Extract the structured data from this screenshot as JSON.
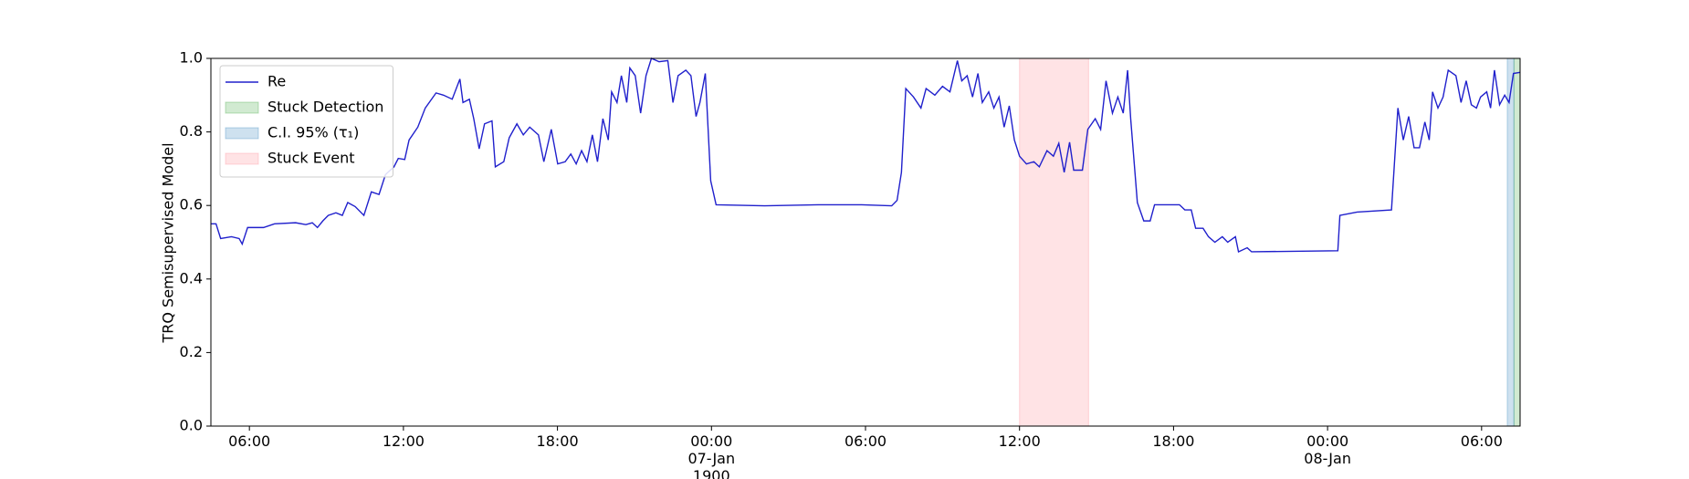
{
  "chart_data": {
    "type": "line",
    "ylabel": "TRQ Semisupervised Model",
    "xlim": [
      4.5,
      55.5
    ],
    "xticks": [
      {
        "value": 6,
        "label": "06:00"
      },
      {
        "value": 12,
        "label": "12:00"
      },
      {
        "value": 18,
        "label": "18:00"
      },
      {
        "value": 24,
        "label": "00:00\n07-Jan\n1900"
      },
      {
        "value": 30,
        "label": "06:00"
      },
      {
        "value": 36,
        "label": "12:00"
      },
      {
        "value": 42,
        "label": "18:00"
      },
      {
        "value": 48,
        "label": "00:00\n08-Jan"
      },
      {
        "value": 54,
        "label": "06:00"
      }
    ],
    "ylim": [
      0,
      1
    ],
    "yticks": [
      {
        "value": 0,
        "label": "0.0"
      },
      {
        "value": 0.2,
        "label": "0.2"
      },
      {
        "value": 0.4,
        "label": "0.4"
      },
      {
        "value": 0.6,
        "label": "0.6"
      },
      {
        "value": 0.8,
        "label": "0.8"
      },
      {
        "value": 1,
        "label": "1.0"
      }
    ],
    "legend": "upper left",
    "series": [
      {
        "name": "Re",
        "color": "#2020cc",
        "x": [
          4.5,
          4.7,
          4.88,
          5.3,
          5.6,
          5.72,
          5.93,
          6.55,
          6.98,
          7.8,
          8.2,
          8.45,
          8.65,
          8.86,
          9.07,
          9.37,
          9.62,
          9.83,
          10.12,
          10.46,
          10.75,
          11.05,
          11.3,
          11.63,
          11.8,
          12.05,
          12.22,
          12.56,
          12.85,
          13.27,
          13.56,
          13.9,
          14.2,
          14.32,
          14.57,
          14.74,
          14.95,
          15.16,
          15.45,
          15.58,
          15.91,
          16.12,
          16.42,
          16.67,
          16.92,
          17.26,
          17.47,
          17.76,
          18.01,
          18.3,
          18.52,
          18.73,
          18.94,
          19.15,
          19.36,
          19.56,
          19.77,
          19.98,
          20.11,
          20.32,
          20.49,
          20.7,
          20.82,
          21.03,
          21.24,
          21.45,
          21.66,
          21.96,
          22.3,
          22.5,
          22.7,
          23.0,
          23.2,
          23.4,
          23.55,
          23.76,
          23.97,
          24.18,
          26.07,
          28.17,
          29.85,
          31.02,
          31.23,
          31.4,
          31.57,
          31.87,
          32.16,
          32.36,
          32.7,
          33.0,
          33.29,
          33.58,
          33.75,
          33.96,
          34.17,
          34.38,
          34.55,
          34.8,
          35.0,
          35.2,
          35.4,
          35.6,
          35.8,
          36.0,
          36.27,
          36.56,
          36.77,
          37.07,
          37.32,
          37.53,
          37.74,
          37.95,
          38.11,
          38.45,
          38.66,
          38.95,
          39.16,
          39.37,
          39.62,
          39.83,
          40.04,
          40.21,
          40.33,
          40.59,
          40.84,
          41.09,
          41.26,
          42.23,
          42.44,
          42.69,
          42.86,
          43.15,
          43.36,
          43.61,
          43.9,
          44.11,
          44.41,
          44.53,
          44.87,
          45.04,
          48.4,
          48.48,
          49.15,
          50.49,
          50.74,
          50.95,
          51.16,
          51.37,
          51.58,
          51.79,
          51.96,
          52.09,
          52.3,
          52.5,
          52.7,
          53.0,
          53.2,
          53.4,
          53.6,
          53.8,
          53.96,
          54.2,
          54.35,
          54.5,
          54.7,
          54.9,
          55.07,
          55.24,
          55.5
        ],
        "values": [
          0.55,
          0.55,
          0.51,
          0.515,
          0.51,
          0.495,
          0.54,
          0.54,
          0.55,
          0.553,
          0.548,
          0.553,
          0.54,
          0.558,
          0.573,
          0.58,
          0.573,
          0.608,
          0.597,
          0.573,
          0.637,
          0.63,
          0.684,
          0.705,
          0.728,
          0.725,
          0.778,
          0.813,
          0.865,
          0.906,
          0.9,
          0.889,
          0.944,
          0.88,
          0.889,
          0.836,
          0.754,
          0.822,
          0.83,
          0.705,
          0.719,
          0.784,
          0.822,
          0.792,
          0.813,
          0.792,
          0.719,
          0.807,
          0.713,
          0.719,
          0.74,
          0.713,
          0.749,
          0.719,
          0.792,
          0.719,
          0.836,
          0.778,
          0.909,
          0.88,
          0.953,
          0.88,
          0.974,
          0.953,
          0.851,
          0.953,
          1.0,
          0.991,
          0.994,
          0.88,
          0.953,
          0.968,
          0.953,
          0.842,
          0.88,
          0.959,
          0.667,
          0.602,
          0.599,
          0.602,
          0.602,
          0.599,
          0.614,
          0.69,
          0.918,
          0.895,
          0.865,
          0.918,
          0.9,
          0.924,
          0.909,
          0.994,
          0.939,
          0.953,
          0.895,
          0.959,
          0.88,
          0.909,
          0.865,
          0.895,
          0.813,
          0.871,
          0.778,
          0.734,
          0.713,
          0.719,
          0.705,
          0.749,
          0.734,
          0.769,
          0.69,
          0.772,
          0.696,
          0.696,
          0.807,
          0.836,
          0.807,
          0.939,
          0.851,
          0.895,
          0.851,
          0.968,
          0.836,
          0.608,
          0.558,
          0.558,
          0.602,
          0.602,
          0.588,
          0.588,
          0.538,
          0.538,
          0.515,
          0.5,
          0.515,
          0.5,
          0.515,
          0.474,
          0.485,
          0.474,
          0.477,
          0.573,
          0.582,
          0.588,
          0.865,
          0.778,
          0.842,
          0.757,
          0.757,
          0.827,
          0.778,
          0.909,
          0.865,
          0.895,
          0.968,
          0.953,
          0.88,
          0.939,
          0.874,
          0.865,
          0.895,
          0.909,
          0.865,
          0.968,
          0.874,
          0.9,
          0.88,
          0.959,
          0.962
        ]
      }
    ],
    "spans": [
      {
        "name": "Stuck Detection",
        "color": "#2ca02c",
        "x0": 55.26,
        "x1": 55.5
      },
      {
        "name": "C.I. 95% (τ₁)",
        "color": "#1f77b4",
        "x0": 55.0,
        "x1": 55.26
      },
      {
        "name": "Stuck Event",
        "color": "#ff7f8a",
        "x0": 36,
        "x1": 38.69
      }
    ]
  }
}
